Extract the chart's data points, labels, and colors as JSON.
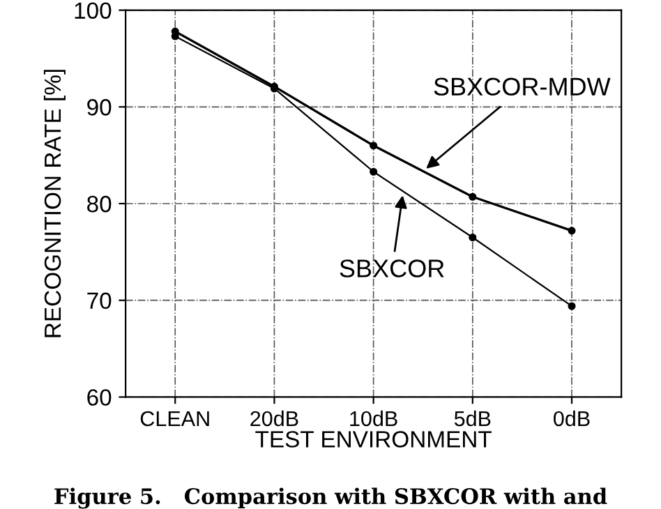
{
  "chart_data": {
    "type": "line",
    "xlabel": "TEST ENVIRONMENT",
    "ylabel": "RECOGNITION RATE [%]",
    "categories": [
      "CLEAN",
      "20dB",
      "10dB",
      "5dB",
      "0dB"
    ],
    "series": [
      {
        "name": "SBXCOR-MDW",
        "color": "#000000",
        "values": [
          97.8,
          92.1,
          86.0,
          80.7,
          77.2
        ]
      },
      {
        "name": "SBXCOR",
        "color": "#000000",
        "values": [
          97.3,
          91.9,
          83.3,
          76.5,
          69.4
        ]
      }
    ],
    "ylim": [
      60,
      100
    ],
    "yticks": [
      60,
      70,
      80,
      90,
      100
    ],
    "grid": true,
    "marker": "circle",
    "line_style": "solid",
    "annotations": [
      "Figure 5.   Comparison with SBXCOR with and"
    ]
  }
}
